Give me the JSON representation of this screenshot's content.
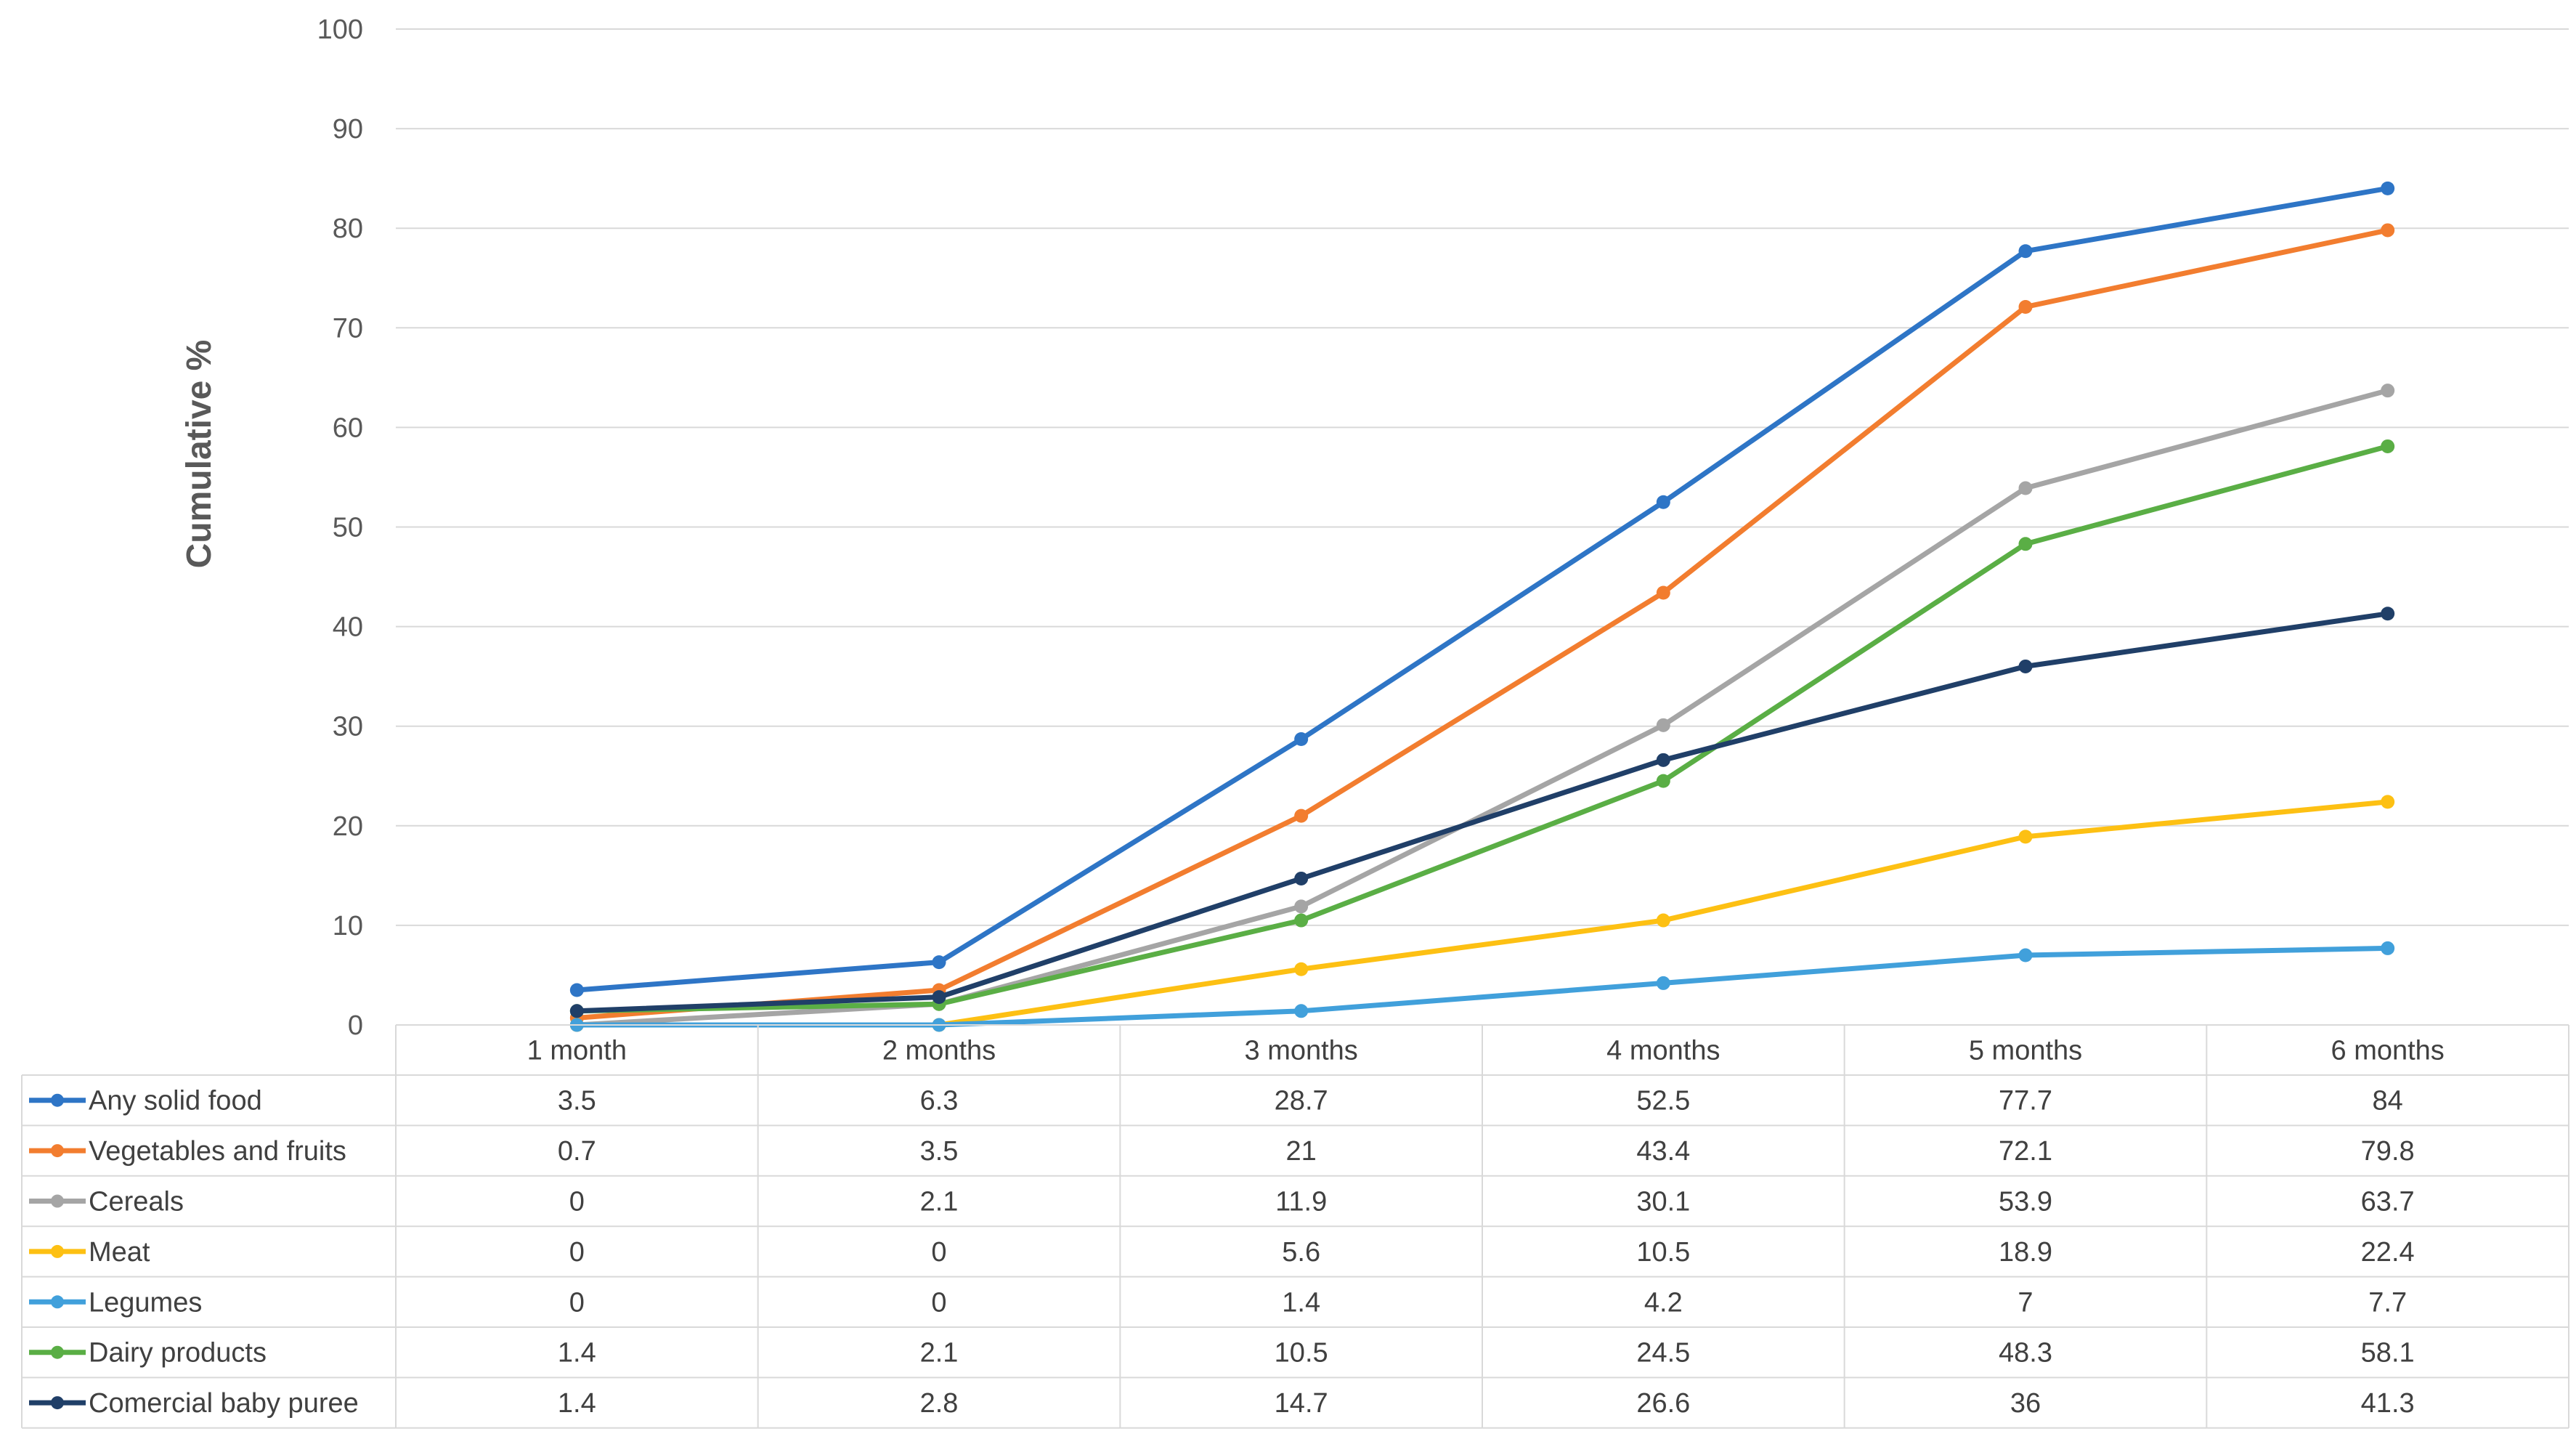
{
  "chart_data": {
    "type": "line",
    "ylabel": "Cumulative %",
    "ylim": [
      0,
      100
    ],
    "yticks": [
      "0",
      "10",
      "20",
      "30",
      "40",
      "50",
      "60",
      "70",
      "80",
      "90",
      "100"
    ],
    "grid": true,
    "legend": "table-below",
    "categories": [
      "1 month",
      "2 months",
      "3 months",
      "4 months",
      "5 months",
      "6 months"
    ],
    "series": [
      {
        "name": "Any solid food",
        "color": "#2e75c6",
        "values": [
          3.5,
          6.3,
          28.7,
          52.5,
          77.7,
          84
        ],
        "labels": [
          "3.5",
          "6.3",
          "28.7",
          "52.5",
          "77.7",
          "84"
        ]
      },
      {
        "name": "Vegetables and fruits",
        "color": "#f27d2f",
        "values": [
          0.7,
          3.5,
          21,
          43.4,
          72.1,
          79.8
        ],
        "labels": [
          "0.7",
          "3.5",
          "21",
          "43.4",
          "72.1",
          "79.8"
        ]
      },
      {
        "name": "Cereals",
        "color": "#a5a5a5",
        "values": [
          0,
          2.1,
          11.9,
          30.1,
          53.9,
          63.7
        ],
        "labels": [
          "0",
          "2.1",
          "11.9",
          "30.1",
          "53.9",
          "63.7"
        ]
      },
      {
        "name": "Meat",
        "color": "#fdc013",
        "values": [
          0,
          0,
          5.6,
          10.5,
          18.9,
          22.4
        ],
        "labels": [
          "0",
          "0",
          "5.6",
          "10.5",
          "18.9",
          "22.4"
        ]
      },
      {
        "name": "Legumes",
        "color": "#41a0db",
        "values": [
          0,
          0,
          1.4,
          4.2,
          7,
          7.7
        ],
        "labels": [
          "0",
          "0",
          "1.4",
          "4.2",
          "7",
          "7.7"
        ]
      },
      {
        "name": "Dairy products",
        "color": "#5aae45",
        "values": [
          1.4,
          2.1,
          10.5,
          24.5,
          48.3,
          58.1
        ],
        "labels": [
          "1.4",
          "2.1",
          "10.5",
          "24.5",
          "48.3",
          "58.1"
        ]
      },
      {
        "name": "Comercial baby puree",
        "color": "#203f68",
        "values": [
          1.4,
          2.8,
          14.7,
          26.6,
          36,
          41.3
        ],
        "labels": [
          "1.4",
          "2.8",
          "14.7",
          "26.6",
          "36",
          "41.3"
        ]
      }
    ]
  }
}
